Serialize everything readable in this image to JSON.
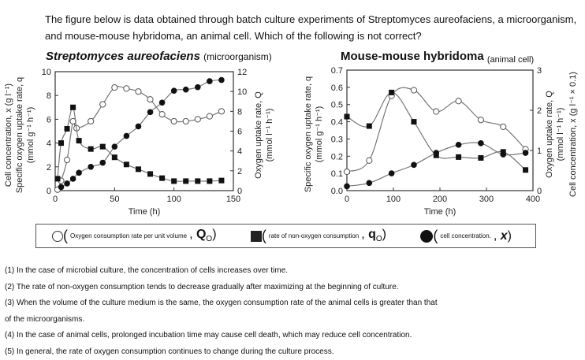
{
  "question": "The figure below is data obtained through batch culture experiments of Streptomyces aureofaciens, a microorganism, and mouse-mouse hybridoma, an animal cell. Which of the following is not correct?",
  "chart_data": [
    {
      "type": "scatter",
      "title": "Streptomyces aureofaciens",
      "title_suffix": "(microorganism)",
      "xlabel": "Time (h)",
      "ylabel_left": [
        "Cell concentration, x (g l⁻¹)",
        "Specific oxygen uptake rate, q",
        "(mmol g⁻¹ h⁻¹)"
      ],
      "ylabel_right": [
        "Oxygen uptake rate, Q",
        "(mmol l⁻¹ h⁻¹)"
      ],
      "xlim": [
        0,
        150
      ],
      "ylim_left": [
        0,
        10
      ],
      "ylim_right": [
        0,
        12
      ],
      "xticks": [
        "0",
        "50",
        "100",
        "150"
      ],
      "yticks_left": [
        "0",
        "2",
        "4",
        "6",
        "8",
        "10"
      ],
      "yticks_right": [
        "0",
        "2",
        "4",
        "6",
        "8",
        "10",
        "12"
      ],
      "series": [
        {
          "name": "Q_O",
          "marker": "open-circle",
          "axis": "right",
          "x": [
            2,
            5,
            10,
            15,
            18,
            30,
            40,
            50,
            60,
            70,
            80,
            90,
            100,
            110,
            120,
            130,
            140
          ],
          "y": [
            0.1,
            1,
            3.1,
            7,
            6.3,
            7,
            8.7,
            10.4,
            10.3,
            10,
            9.2,
            7.7,
            7,
            7,
            7.2,
            7.5,
            8
          ]
        },
        {
          "name": "q_O",
          "marker": "filled-square",
          "axis": "left",
          "x": [
            2,
            5,
            10,
            15,
            20,
            30,
            40,
            50,
            60,
            70,
            80,
            90,
            100,
            110,
            120,
            130,
            140
          ],
          "y": [
            1,
            4,
            5.2,
            7,
            4.2,
            3.5,
            3.7,
            2.8,
            2.2,
            1.8,
            1.4,
            1.05,
            0.8,
            0.8,
            0.8,
            0.8,
            0.85
          ]
        },
        {
          "name": "x",
          "marker": "filled-circle",
          "axis": "left",
          "x": [
            5,
            10,
            15,
            20,
            30,
            40,
            50,
            60,
            70,
            80,
            90,
            100,
            110,
            120,
            130,
            140
          ],
          "y": [
            0.3,
            0.6,
            1,
            1.5,
            2,
            2.35,
            3.7,
            4.6,
            5.4,
            6.6,
            7.4,
            8.4,
            8.5,
            8.7,
            9.2,
            9.3
          ]
        }
      ]
    },
    {
      "type": "scatter",
      "title": "Mouse-mouse hybridoma",
      "title_suffix": "(animal   cell)",
      "xlabel": "Time (h)",
      "ylabel_left": [
        "Specific oxygen uptake rate, q",
        "(mmol g⁻¹ h⁻¹)"
      ],
      "ylabel_right": [
        "Oxygen uptake rate, Q",
        "(mmol l⁻¹ h⁻¹)",
        "Cell concentration, x (g l⁻¹ × 0.1)"
      ],
      "xlim": [
        0,
        400
      ],
      "ylim_left": [
        0,
        0.7
      ],
      "ylim_right": [
        0,
        3
      ],
      "xticks": [
        "0",
        "100",
        "200",
        "300",
        "400"
      ],
      "yticks_left": [
        "0.0",
        "0.1",
        "0.2",
        "0.3",
        "0.4",
        "0.5",
        "0.6",
        "0.7"
      ],
      "yticks_right": [
        "0",
        "1",
        "2",
        "3"
      ],
      "series": [
        {
          "name": "Q_O",
          "marker": "open-circle",
          "axis": "right",
          "x": [
            0,
            48,
            96,
            144,
            192,
            240,
            288,
            336,
            384
          ],
          "y": [
            0.47,
            0.75,
            2.36,
            2.5,
            1.97,
            2.23,
            1.76,
            1.59,
            1.03
          ]
        },
        {
          "name": "q_O",
          "marker": "filled-square",
          "axis": "left",
          "x": [
            0,
            48,
            96,
            144,
            192,
            240,
            288,
            336,
            384
          ],
          "y": [
            0.43,
            0.375,
            0.57,
            0.4,
            0.205,
            0.195,
            0.19,
            0.225,
            0.12
          ]
        },
        {
          "name": "x",
          "marker": "filled-circle",
          "axis": "right",
          "x": [
            0,
            48,
            96,
            144,
            192,
            240,
            288,
            336,
            384
          ],
          "y": [
            0.11,
            0.19,
            0.43,
            0.64,
            0.94,
            1.14,
            1.18,
            0.9,
            0.94
          ]
        }
      ]
    }
  ],
  "legend": [
    {
      "desc": "Oxygen consumption rate per unit volume",
      "symbol": "Q",
      "sub": "O"
    },
    {
      "desc": "rate of non-oxygen consumption",
      "symbol": "q",
      "sub": "O"
    },
    {
      "desc": "cell concentration.",
      "symbol": "x",
      "sub": ""
    }
  ],
  "options": [
    "(1) In the case of microbial culture, the concentration of cells increases over time.",
    "(2) The rate of non-oxygen consumption tends to decrease gradually after maximizing at the beginning of culture.",
    "(3) When the volume of the culture medium is the same, the oxygen consumption rate of the animal cells is greater than that",
    "of the microorganisms.",
    "(4) In the case of animal cells, prolonged incubation time may cause cell death, which may reduce cell concentration.",
    "(5) In general, the rate of oxygen consumption continues to change during the culture process."
  ]
}
